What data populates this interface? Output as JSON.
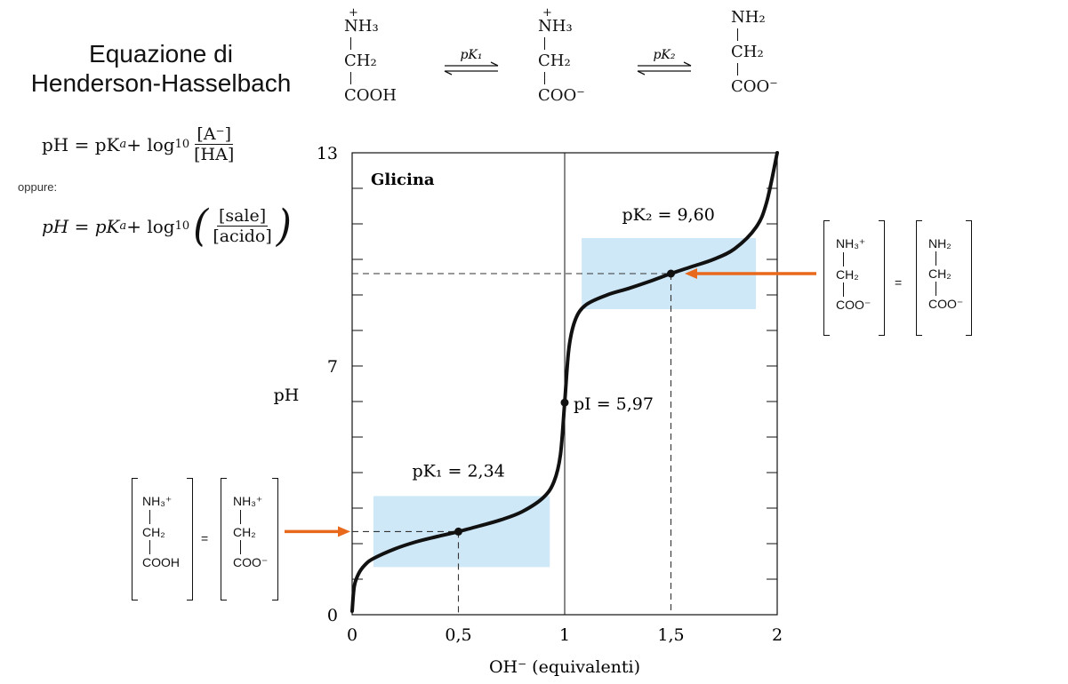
{
  "title": {
    "line1": "Equazione di",
    "line2": "Henderson-Hasselbach"
  },
  "equation1": {
    "lhs": "pH = pK",
    "sub_a": "a",
    "plus_log": " + log",
    "sub_10": "10",
    "numerator": "[A⁻]",
    "denominator": "[HA]"
  },
  "oppure": "oppure:",
  "equation2": {
    "lhs": "pH = pK",
    "sub_a": "a",
    "plus_log": " + log",
    "sub_10": "10",
    "numerator": "[sale]",
    "denominator": "[acido]"
  },
  "species": [
    {
      "plus": "+",
      "top": "NH₃",
      "mid": "CH₂",
      "bottom": "COOH"
    },
    {
      "plus": "+",
      "top": "NH₃",
      "mid": "CH₂",
      "bottom": "COO⁻"
    },
    {
      "plus": "",
      "top": "NH₂",
      "mid": "CH₂",
      "bottom": "COO⁻"
    }
  ],
  "equilibria": [
    {
      "label": "pK₁"
    },
    {
      "label": "pK₂"
    }
  ],
  "side_equations": {
    "left": {
      "lhs": {
        "top": "NH₃⁺",
        "mid": "CH₂",
        "bottom": "COOH"
      },
      "eq": "=",
      "rhs": {
        "top": "NH₃⁺",
        "mid": "CH₂",
        "bottom": "COO⁻"
      }
    },
    "right": {
      "lhs": {
        "top": "NH₃⁺",
        "mid": "CH₂",
        "bottom": "COO⁻"
      },
      "eq": "=",
      "rhs": {
        "top": "NH₂",
        "mid": "CH₂",
        "bottom": "COO⁻"
      }
    }
  },
  "colors": {
    "curve": "#111111",
    "buffer_region": "#cfe8f7",
    "arrow": "#e8691c"
  },
  "chart_data": {
    "type": "line",
    "title": "Glicina",
    "xlabel": "OH⁻  (equivalenti)",
    "ylabel": "pH",
    "xlim": [
      0,
      2
    ],
    "ylim": [
      0,
      13
    ],
    "x_ticks": [
      {
        "v": 0,
        "label": "0"
      },
      {
        "v": 0.5,
        "label": "0,5"
      },
      {
        "v": 1,
        "label": "1"
      },
      {
        "v": 1.5,
        "label": "1,5"
      },
      {
        "v": 2,
        "label": "2"
      }
    ],
    "y_ticks": [
      {
        "v": 0,
        "label": "0"
      },
      {
        "v": 7,
        "label": "7"
      },
      {
        "v": 13,
        "label": "13"
      }
    ],
    "series": [
      {
        "x": [
          0,
          0.01,
          0.03,
          0.06,
          0.1,
          0.2,
          0.3,
          0.4,
          0.5,
          0.6,
          0.7,
          0.8,
          0.9,
          0.95,
          0.98,
          1.0,
          1.02,
          1.05,
          1.1,
          1.2,
          1.3,
          1.4,
          1.5,
          1.6,
          1.7,
          1.8,
          1.9,
          1.95,
          2.0
        ],
        "y": [
          0.1,
          0.8,
          1.15,
          1.4,
          1.58,
          1.85,
          2.05,
          2.2,
          2.34,
          2.5,
          2.67,
          2.9,
          3.3,
          3.75,
          4.5,
          5.97,
          7.5,
          8.3,
          8.72,
          9.0,
          9.18,
          9.38,
          9.6,
          9.8,
          10.0,
          10.3,
          10.9,
          11.6,
          13.0
        ]
      }
    ],
    "points": [
      {
        "x": 0.5,
        "y": 2.34,
        "label": "pK₁ = 2,34"
      },
      {
        "x": 1.0,
        "y": 5.97,
        "label": "pI = 5,97"
      },
      {
        "x": 1.5,
        "y": 9.6,
        "label": "pK₂ = 9,60"
      }
    ],
    "buffer_regions": [
      {
        "x": [
          0.1,
          0.93
        ],
        "y": [
          1.34,
          3.34
        ]
      },
      {
        "x": [
          1.08,
          1.9
        ],
        "y": [
          8.6,
          10.6
        ]
      }
    ]
  }
}
